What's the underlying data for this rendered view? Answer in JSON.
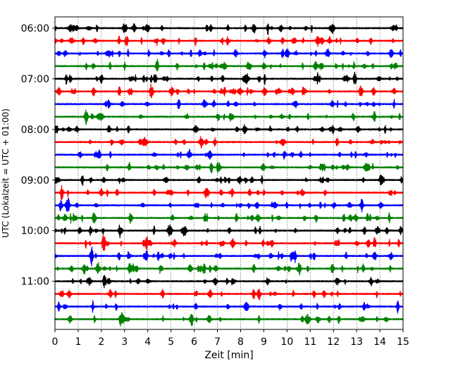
{
  "chart_data": {
    "type": "line",
    "title": "",
    "xlabel": "Zeit  [min]",
    "ylabel": "UTC (Lokalzeit = UTC + 01:00)",
    "xlim": [
      0,
      15
    ],
    "x_ticks": [
      0,
      1,
      2,
      3,
      4,
      5,
      6,
      7,
      8,
      9,
      10,
      11,
      12,
      13,
      14,
      15
    ],
    "x_tick_labels": [
      "0",
      "1",
      "2",
      "3",
      "4",
      "5",
      "6",
      "7",
      "8",
      "9",
      "10",
      "11",
      "12",
      "13",
      "14",
      "15"
    ],
    "y_ticks": [
      {
        "label": "06:00",
        "trace_index": 0
      },
      {
        "label": "07:00",
        "trace_index": 4
      },
      {
        "label": "08:00",
        "trace_index": 8
      },
      {
        "label": "09:00",
        "trace_index": 12
      },
      {
        "label": "10:00",
        "trace_index": 16
      },
      {
        "label": "11:00",
        "trace_index": 20
      }
    ],
    "grid": "vertical dotted at each minute",
    "trace_interval_minutes": 15,
    "color_cycle": [
      "#000000",
      "#ff0000",
      "#0000ff",
      "#008000"
    ],
    "series": [
      {
        "start": "06:00",
        "color": "#000000"
      },
      {
        "start": "06:15",
        "color": "#ff0000"
      },
      {
        "start": "06:30",
        "color": "#0000ff"
      },
      {
        "start": "06:45",
        "color": "#008000"
      },
      {
        "start": "07:00",
        "color": "#000000"
      },
      {
        "start": "07:15",
        "color": "#ff0000"
      },
      {
        "start": "07:30",
        "color": "#0000ff"
      },
      {
        "start": "07:45",
        "color": "#008000"
      },
      {
        "start": "08:00",
        "color": "#000000"
      },
      {
        "start": "08:15",
        "color": "#ff0000"
      },
      {
        "start": "08:30",
        "color": "#0000ff"
      },
      {
        "start": "08:45",
        "color": "#008000"
      },
      {
        "start": "09:00",
        "color": "#000000"
      },
      {
        "start": "09:15",
        "color": "#ff0000"
      },
      {
        "start": "09:30",
        "color": "#0000ff"
      },
      {
        "start": "09:45",
        "color": "#008000"
      },
      {
        "start": "10:00",
        "color": "#000000"
      },
      {
        "start": "10:15",
        "color": "#ff0000"
      },
      {
        "start": "10:30",
        "color": "#0000ff"
      },
      {
        "start": "10:45",
        "color": "#008000"
      },
      {
        "start": "11:00",
        "color": "#000000"
      },
      {
        "start": "11:15",
        "color": "#ff0000"
      },
      {
        "start": "11:30",
        "color": "#0000ff"
      },
      {
        "start": "11:45",
        "color": "#008000"
      }
    ]
  }
}
